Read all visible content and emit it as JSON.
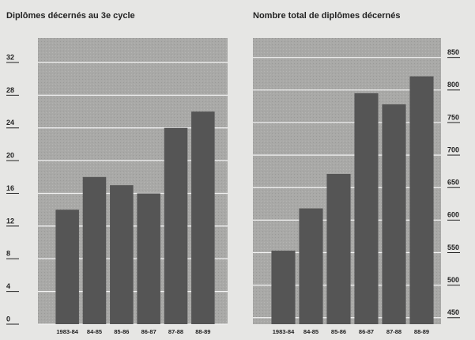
{
  "chart_data": [
    {
      "type": "bar",
      "title": "Diplômes décernés au 3e cycle",
      "categories": [
        "1983-84",
        "84-85",
        "85-86",
        "86-87",
        "87-88",
        "88-89"
      ],
      "values": [
        14,
        18,
        17,
        16,
        24,
        26
      ],
      "color": "#555555",
      "ylim": [
        0,
        35
      ],
      "yticks": [
        0,
        4,
        8,
        12,
        16,
        20,
        24,
        28,
        32
      ],
      "grid": true,
      "axis_side": "left"
    },
    {
      "type": "bar",
      "title": "Nombre total de diplômes décernés",
      "categories": [
        "1983-84",
        "84-85",
        "85-86",
        "86-87",
        "87-88",
        "88-89"
      ],
      "values": [
        553,
        618,
        671,
        795,
        778,
        821
      ],
      "color": "#555555",
      "ylim": [
        440,
        880
      ],
      "yticks": [
        450,
        500,
        550,
        600,
        650,
        700,
        750,
        800,
        850
      ],
      "grid": true,
      "axis_side": "right"
    }
  ]
}
